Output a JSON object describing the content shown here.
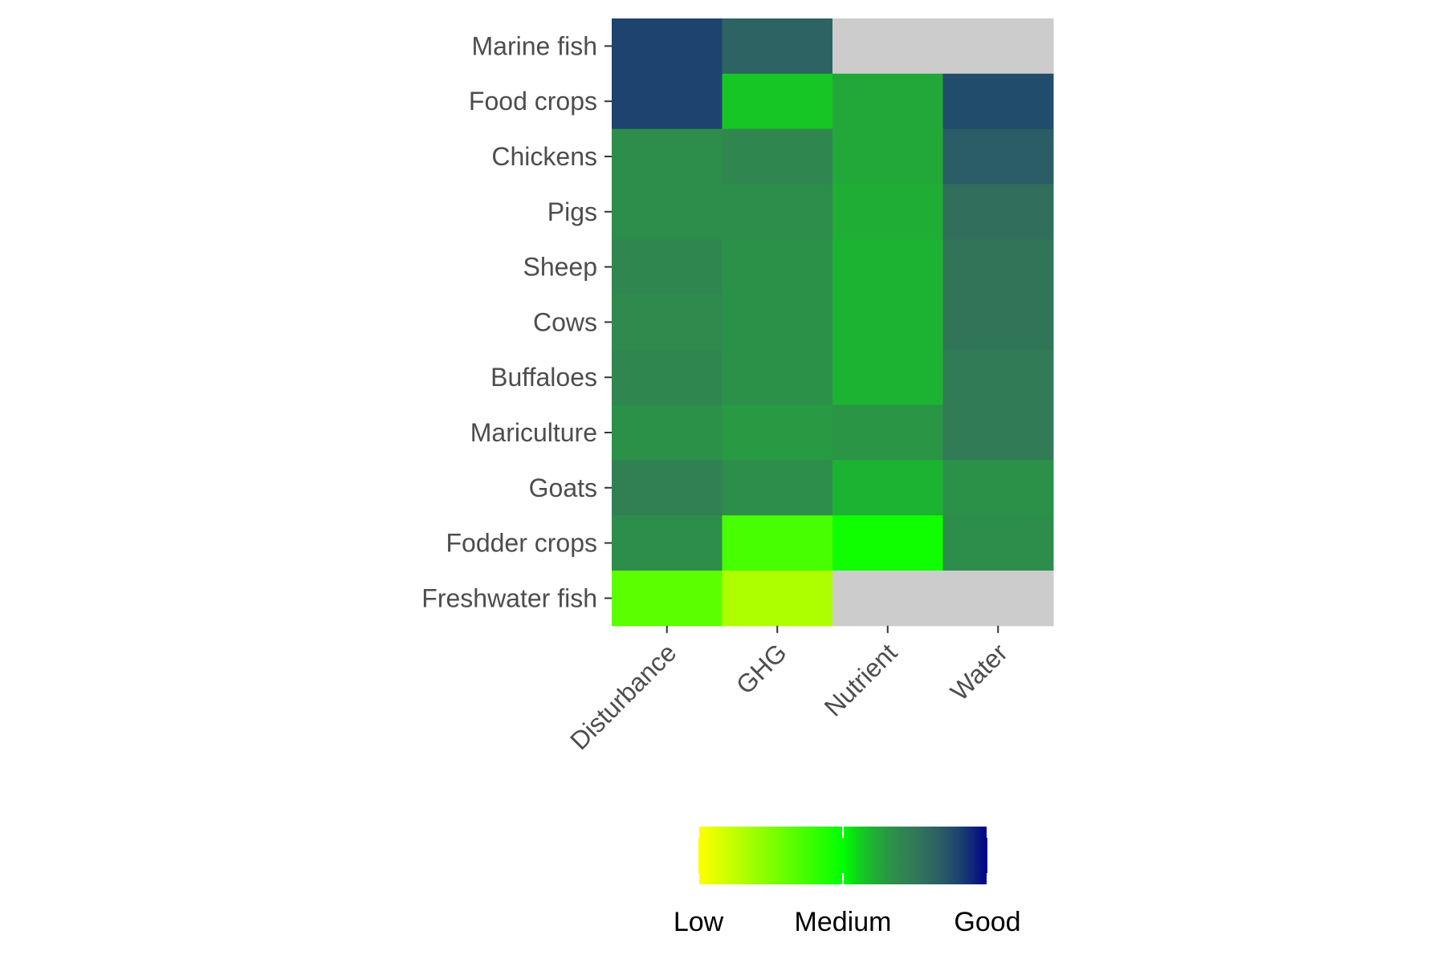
{
  "chart_data": {
    "type": "heatmap",
    "columns": [
      "Disturbance",
      "GHG",
      "Nutrient",
      "Water"
    ],
    "rows": [
      "Marine fish",
      "Food crops",
      "Chickens",
      "Pigs",
      "Sheep",
      "Cows",
      "Buffaloes",
      "Mariculture",
      "Goats",
      "Fodder crops",
      "Freshwater fish"
    ],
    "scale": {
      "min": 0,
      "max": 1,
      "colors": [
        "#ffff00",
        "#00ff00",
        "#00008b"
      ],
      "tick_values": [
        0,
        0.5,
        1
      ],
      "tick_labels": [
        "Low",
        "Medium",
        "Good"
      ]
    },
    "values": [
      [
        0.9,
        0.82,
        null,
        null
      ],
      [
        0.9,
        0.57,
        0.62,
        0.88
      ],
      [
        0.68,
        0.7,
        0.62,
        0.84
      ],
      [
        0.68,
        0.68,
        0.61,
        0.78
      ],
      [
        0.7,
        0.67,
        0.6,
        0.76
      ],
      [
        0.69,
        0.67,
        0.6,
        0.76
      ],
      [
        0.7,
        0.67,
        0.6,
        0.74
      ],
      [
        0.67,
        0.65,
        0.66,
        0.74
      ],
      [
        0.72,
        0.68,
        0.6,
        0.67
      ],
      [
        0.68,
        0.36,
        0.47,
        0.68
      ],
      [
        0.32,
        0.16,
        null,
        null
      ]
    ],
    "missing_color": "#cccccc",
    "legend_position": "bottom",
    "grid": false
  }
}
